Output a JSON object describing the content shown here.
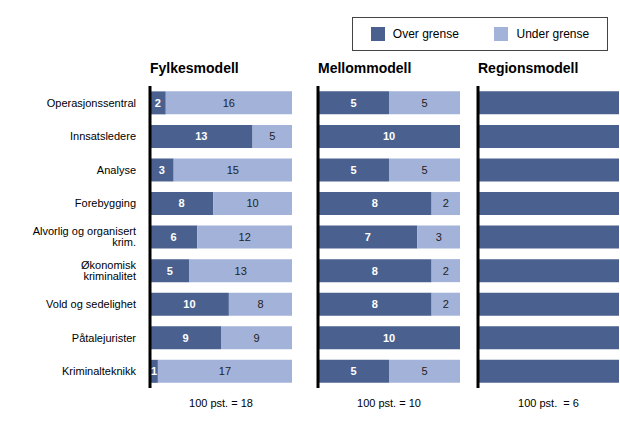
{
  "chart_data": [
    {
      "type": "bar",
      "title": "Fylkesmodell",
      "orientation": "horizontal",
      "stacked": true,
      "data_labels": true,
      "tick_labels": "y",
      "categories": [
        "Operasjonssentral",
        "Innsatsledere",
        "Analyse",
        "Forebygging",
        "Alvorlig og organisert krim.",
        "Økonomisk kriminalitet",
        "Vold og sedelighet",
        "Påtalejurister",
        "Kriminalteknikk"
      ],
      "series": [
        {
          "name": "Over grense",
          "color": "#4a6190",
          "values": [
            2,
            13,
            3,
            8,
            6,
            5,
            10,
            9,
            1
          ]
        },
        {
          "name": "Under grense",
          "color": "#a2b2d9",
          "values": [
            16,
            5,
            15,
            10,
            12,
            13,
            8,
            9,
            17
          ]
        }
      ],
      "xlim": [
        0,
        18
      ],
      "xticks": [
        0,
        18
      ],
      "xlabel": "100 pst. = 18"
    },
    {
      "type": "bar",
      "title": "Mellommodell",
      "orientation": "horizontal",
      "stacked": true,
      "data_labels": true,
      "tick_labels": false,
      "categories": [
        "Operasjonssentral",
        "Innsatsledere",
        "Analyse",
        "Forebygging",
        "Alvorlig og organisert krim.",
        "Økonomisk kriminalitet",
        "Vold og sedelighet",
        "Påtalejurister",
        "Kriminalteknikk"
      ],
      "series": [
        {
          "name": "Over grense",
          "color": "#4a6190",
          "values": [
            5,
            10,
            5,
            8,
            7,
            8,
            8,
            10,
            5
          ]
        },
        {
          "name": "Under grense",
          "color": "#a2b2d9",
          "values": [
            5,
            0,
            5,
            2,
            3,
            2,
            2,
            0,
            5
          ]
        }
      ],
      "xlim": [
        0,
        10
      ],
      "xticks": [
        0,
        10
      ],
      "xlabel": "100 pst. = 10"
    },
    {
      "type": "bar",
      "title": "Regionsmodell",
      "orientation": "horizontal",
      "stacked": true,
      "data_labels": false,
      "tick_labels": false,
      "legend": "top right",
      "categories": [
        "Operasjonssentral",
        "Innsatsledere",
        "Analyse",
        "Forebygging",
        "Alvorlig og organisert krim.",
        "Økonomisk kriminalitet",
        "Vold og sedelighet",
        "Påtalejurister",
        "Kriminalteknikk"
      ],
      "series": [
        {
          "name": "Over grense",
          "color": "#4a6190",
          "values": [
            6,
            6,
            6,
            6,
            6,
            6,
            6,
            6,
            6
          ]
        },
        {
          "name": "Under grense",
          "color": "#a2b2d9",
          "values": [
            0,
            0,
            0,
            0,
            0,
            0,
            0,
            0,
            0
          ]
        }
      ],
      "xlim": [
        0,
        6
      ],
      "xticks": [
        0,
        6
      ],
      "xlabel": "100 pst.  = 6"
    }
  ]
}
